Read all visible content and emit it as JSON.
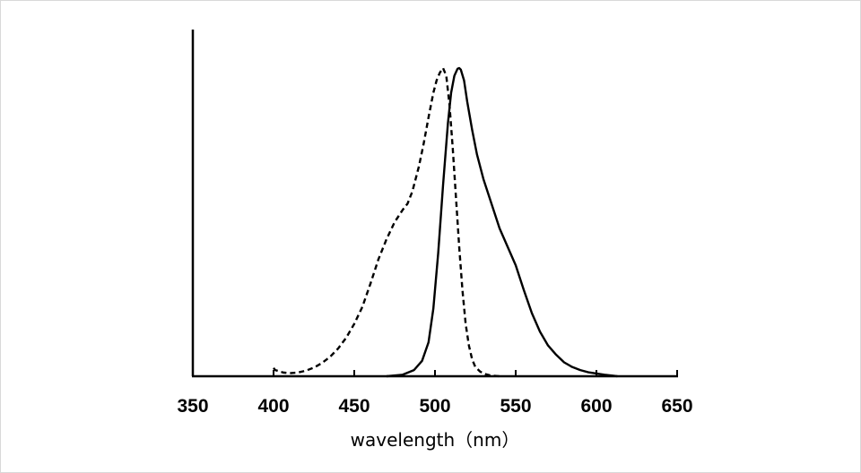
{
  "chart_data": {
    "type": "line",
    "title": "",
    "xlabel": "wavelength（nm）",
    "ylabel": "",
    "xlim": [
      350,
      650
    ],
    "ylim": [
      0,
      1
    ],
    "xticks": [
      "350",
      "400",
      "450",
      "500",
      "550",
      "600",
      "650"
    ],
    "grid": false,
    "legend": "none",
    "series": [
      {
        "style": "dashed",
        "color": "#000000",
        "x": [
          400,
          401,
          403,
          406,
          410,
          415,
          420,
          425,
          430,
          435,
          440,
          445,
          450,
          455,
          460,
          465,
          470,
          475,
          480,
          483,
          486,
          490,
          493,
          496,
          499,
          501,
          503,
          505,
          507,
          509,
          511,
          513,
          515,
          517,
          519,
          521,
          523,
          525,
          528,
          531,
          535,
          540
        ],
        "y": [
          0.027,
          0.02,
          0.017,
          0.012,
          0.01,
          0.012,
          0.018,
          0.028,
          0.043,
          0.063,
          0.09,
          0.125,
          0.17,
          0.225,
          0.3,
          0.38,
          0.445,
          0.5,
          0.54,
          0.56,
          0.6,
          0.68,
          0.755,
          0.84,
          0.92,
          0.96,
          0.985,
          1.0,
          0.975,
          0.88,
          0.74,
          0.58,
          0.42,
          0.28,
          0.17,
          0.1,
          0.055,
          0.03,
          0.015,
          0.007,
          0.002,
          0.0
        ]
      },
      {
        "style": "solid",
        "color": "#000000",
        "x": [
          470,
          480,
          487,
          492,
          496,
          499,
          502,
          505,
          508,
          510,
          512,
          514,
          515,
          516,
          518,
          520,
          523,
          526,
          530,
          535,
          540,
          545,
          550,
          555,
          560,
          565,
          570,
          575,
          580,
          585,
          590,
          595,
          600,
          605,
          610,
          613
        ],
        "y": [
          0.0,
          0.005,
          0.02,
          0.05,
          0.11,
          0.22,
          0.4,
          0.62,
          0.82,
          0.92,
          0.975,
          0.998,
          1.0,
          0.995,
          0.96,
          0.89,
          0.8,
          0.72,
          0.64,
          0.56,
          0.48,
          0.42,
          0.36,
          0.28,
          0.205,
          0.145,
          0.1,
          0.07,
          0.045,
          0.03,
          0.02,
          0.013,
          0.009,
          0.005,
          0.002,
          0.0
        ]
      }
    ]
  }
}
